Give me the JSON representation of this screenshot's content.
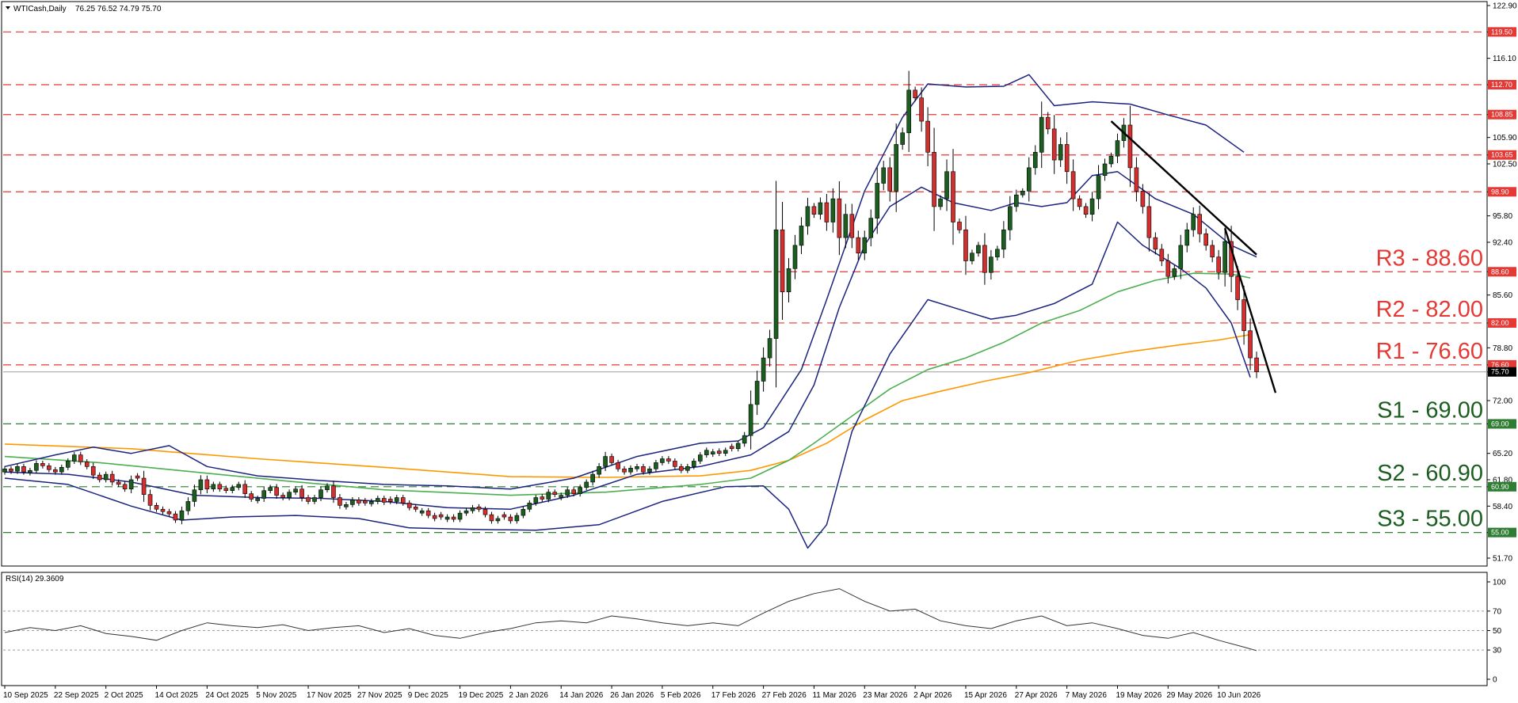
{
  "chart_data": {
    "type": "candlestick",
    "symbol": "WTICash,Daily",
    "ohlc_header": "76.25 76.52 74.79 75.70",
    "last_price": "75.70",
    "y_ticks": [
      "122.90",
      "119.50",
      "116.10",
      "112.70",
      "108.85",
      "105.90",
      "103.65",
      "102.50",
      "98.90",
      "95.80",
      "92.40",
      "88.60",
      "85.60",
      "82.00",
      "78.80",
      "76.60",
      "75.70",
      "72.00",
      "69.00",
      "65.20",
      "61.80",
      "60.90",
      "58.40",
      "55.00",
      "51.70"
    ],
    "x_labels": [
      {
        "label": "10 Sep 2025",
        "i": 0
      },
      {
        "label": "22 Sep 2025",
        "i": 8
      },
      {
        "label": "2 Oct 2025",
        "i": 16
      },
      {
        "label": "14 Oct 2025",
        "i": 24
      },
      {
        "label": "24 Oct 2025",
        "i": 32
      },
      {
        "label": "5 Nov 2025",
        "i": 40
      },
      {
        "label": "17 Nov 2025",
        "i": 48
      },
      {
        "label": "27 Nov 2025",
        "i": 56
      },
      {
        "label": "9 Dec 2025",
        "i": 64
      },
      {
        "label": "19 Dec 2025",
        "i": 72
      },
      {
        "label": "2 Jan 2026",
        "i": 80
      },
      {
        "label": "14 Jan 2026",
        "i": 88
      },
      {
        "label": "26 Jan 2026",
        "i": 96
      },
      {
        "label": "5 Feb 2026",
        "i": 104
      },
      {
        "label": "17 Feb 2026",
        "i": 112
      },
      {
        "label": "27 Feb 2026",
        "i": 120
      },
      {
        "label": "11 Mar 2026",
        "i": 128
      },
      {
        "label": "23 Mar 2026",
        "i": 136
      },
      {
        "label": "2 Apr 2026",
        "i": 144
      },
      {
        "label": "15 Apr 2026",
        "i": 152
      },
      {
        "label": "27 Apr 2026",
        "i": 160
      },
      {
        "label": "7 May 2026",
        "i": 168
      },
      {
        "label": "19 May 2026",
        "i": 176
      },
      {
        "label": "29 May 2026",
        "i": 184
      },
      {
        "label": "10 Jun 2026",
        "i": 192
      }
    ],
    "price_range": [
      51.7,
      122.9
    ],
    "levels": [
      {
        "value": 119.5,
        "tag": "119.50",
        "kind": "resistance",
        "label": ""
      },
      {
        "value": 112.7,
        "tag": "112.70",
        "kind": "resistance",
        "label": ""
      },
      {
        "value": 108.85,
        "tag": "108.85",
        "kind": "resistance",
        "label": ""
      },
      {
        "value": 103.65,
        "tag": "103.65",
        "kind": "resistance",
        "label": ""
      },
      {
        "value": 98.9,
        "tag": "98.90",
        "kind": "resistance",
        "label": ""
      },
      {
        "value": 88.6,
        "tag": "88.60",
        "kind": "resistance",
        "label": "R3 - 88.60"
      },
      {
        "value": 82.0,
        "tag": "82.00",
        "kind": "resistance",
        "label": "R2 - 82.00"
      },
      {
        "value": 76.6,
        "tag": "76.60",
        "kind": "resistance",
        "label": "R1 - 76.60"
      },
      {
        "value": 69.0,
        "tag": "69.00",
        "kind": "support",
        "label": "S1 - 69.00"
      },
      {
        "value": 60.9,
        "tag": "60.90",
        "kind": "support",
        "label": "S2 - 60.90"
      },
      {
        "value": 55.0,
        "tag": "55.00",
        "kind": "support",
        "label": "S3 - 55.00"
      }
    ],
    "closes": [
      63.2,
      62.9,
      63.5,
      62.8,
      63.0,
      63.9,
      63.6,
      63.1,
      62.8,
      63.4,
      64.2,
      65.0,
      64.1,
      63.5,
      62.4,
      61.8,
      62.5,
      61.5,
      61.2,
      60.6,
      61.8,
      62.0,
      59.9,
      58.5,
      58.0,
      57.7,
      57.4,
      56.6,
      57.8,
      59.0,
      60.5,
      61.8,
      60.6,
      61.2,
      60.6,
      60.4,
      60.8,
      61.2,
      60.0,
      59.3,
      59.4,
      60.4,
      60.8,
      59.8,
      59.5,
      60.2,
      60.6,
      59.5,
      59.0,
      59.5,
      60.5,
      61.0,
      59.5,
      58.5,
      58.6,
      59.2,
      58.8,
      58.8,
      59.0,
      59.4,
      58.9,
      59.0,
      59.5,
      58.8,
      58.2,
      58.0,
      57.8,
      57.2,
      56.8,
      57.0,
      57.0,
      56.7,
      57.5,
      57.8,
      58.2,
      58.0,
      57.3,
      56.5,
      56.8,
      57.0,
      56.5,
      57.2,
      58.0,
      58.8,
      59.5,
      59.3,
      60.2,
      59.9,
      59.8,
      60.5,
      60.0,
      60.8,
      61.5,
      62.5,
      63.5,
      64.8,
      64.0,
      63.2,
      62.8,
      63.3,
      63.5,
      62.8,
      63.2,
      64.0,
      64.5,
      64.2,
      63.5,
      63.0,
      63.5,
      64.2,
      65.0,
      65.6,
      65.4,
      65.2,
      65.6,
      65.8,
      66.5,
      67.5,
      71.5,
      74.5,
      77.5,
      80.0,
      94.0,
      86.0,
      89.0,
      92.0,
      94.5,
      97.0,
      96.0,
      97.5,
      95.0,
      98.0,
      93.0,
      96.0,
      93.0,
      91.0,
      93.0,
      95.5,
      100.0,
      102.0,
      99.0,
      105.0,
      106.5,
      112.0,
      111.0,
      108.0,
      104.0,
      97.0,
      98.0,
      101.5,
      95.0,
      94.0,
      90.0,
      91.0,
      92.0,
      88.5,
      90.5,
      91.5,
      94.0,
      97.0,
      98.5,
      99.0,
      102.0,
      104.0,
      108.5,
      107.0,
      103.0,
      105.0,
      101.5,
      98.0,
      97.0,
      96.0,
      98.0,
      101.0,
      102.5,
      103.5,
      105.5,
      107.5,
      102.0,
      99.0,
      97.0,
      93.0,
      91.5,
      90.0,
      88.0,
      89.0,
      92.0,
      94.0,
      96.0,
      93.5,
      92.0,
      90.5,
      88.5,
      92.5,
      88.0,
      85.0,
      81.0,
      77.5,
      75.7
    ],
    "ma_orange": [
      [
        0,
        66.4
      ],
      [
        20,
        65.8
      ],
      [
        40,
        64.5
      ],
      [
        60,
        63.4
      ],
      [
        80,
        62.2
      ],
      [
        95,
        62.1
      ],
      [
        110,
        62.3
      ],
      [
        118,
        63.0
      ],
      [
        124,
        64.3
      ],
      [
        130,
        66.5
      ],
      [
        136,
        69.5
      ],
      [
        142,
        72.0
      ],
      [
        148,
        73.2
      ],
      [
        155,
        74.5
      ],
      [
        162,
        75.6
      ],
      [
        170,
        77.2
      ],
      [
        178,
        78.3
      ],
      [
        186,
        79.2
      ],
      [
        192,
        79.8
      ],
      [
        197,
        80.5
      ]
    ],
    "ma_green": [
      [
        0,
        64.8
      ],
      [
        15,
        64.0
      ],
      [
        30,
        62.8
      ],
      [
        45,
        61.6
      ],
      [
        60,
        60.5
      ],
      [
        80,
        59.8
      ],
      [
        95,
        60.2
      ],
      [
        110,
        61.2
      ],
      [
        118,
        62.0
      ],
      [
        124,
        64.3
      ],
      [
        128,
        66.5
      ],
      [
        134,
        70.0
      ],
      [
        140,
        73.5
      ],
      [
        146,
        76.0
      ],
      [
        152,
        77.5
      ],
      [
        158,
        79.5
      ],
      [
        164,
        82.0
      ],
      [
        170,
        83.6
      ],
      [
        176,
        86.0
      ],
      [
        182,
        87.5
      ],
      [
        188,
        88.4
      ],
      [
        194,
        88.3
      ],
      [
        197,
        87.8
      ]
    ],
    "bb_upper": [
      [
        0,
        63.5
      ],
      [
        8,
        65.0
      ],
      [
        14,
        66.0
      ],
      [
        20,
        65.2
      ],
      [
        26,
        66.2
      ],
      [
        32,
        63.5
      ],
      [
        40,
        62.3
      ],
      [
        50,
        61.7
      ],
      [
        60,
        61.2
      ],
      [
        70,
        61.0
      ],
      [
        80,
        60.6
      ],
      [
        90,
        62.0
      ],
      [
        100,
        64.8
      ],
      [
        110,
        66.5
      ],
      [
        116,
        66.8
      ],
      [
        120,
        68.5
      ],
      [
        126,
        76.0
      ],
      [
        130,
        85.0
      ],
      [
        136,
        99.0
      ],
      [
        142,
        108.5
      ],
      [
        146,
        112.8
      ],
      [
        152,
        112.4
      ],
      [
        158,
        112.5
      ],
      [
        162,
        114.0
      ],
      [
        166,
        110.0
      ],
      [
        172,
        110.5
      ],
      [
        178,
        110.2
      ],
      [
        184,
        108.8
      ],
      [
        190,
        107.5
      ],
      [
        196,
        104.0
      ]
    ],
    "bb_middle": [
      [
        0,
        62.8
      ],
      [
        10,
        62.5
      ],
      [
        20,
        61.5
      ],
      [
        30,
        59.8
      ],
      [
        40,
        59.5
      ],
      [
        50,
        59.4
      ],
      [
        60,
        59.0
      ],
      [
        70,
        58.2
      ],
      [
        80,
        58.0
      ],
      [
        90,
        59.8
      ],
      [
        100,
        62.5
      ],
      [
        110,
        63.5
      ],
      [
        118,
        65.0
      ],
      [
        124,
        68.0
      ],
      [
        128,
        74.0
      ],
      [
        132,
        84.0
      ],
      [
        136,
        92.0
      ],
      [
        140,
        97.0
      ],
      [
        145,
        99.5
      ],
      [
        150,
        97.5
      ],
      [
        156,
        96.5
      ],
      [
        160,
        97.5
      ],
      [
        164,
        97.0
      ],
      [
        168,
        97.5
      ],
      [
        172,
        101.0
      ],
      [
        176,
        101.5
      ],
      [
        182,
        98.0
      ],
      [
        188,
        96.0
      ],
      [
        194,
        92.0
      ],
      [
        198,
        90.5
      ]
    ],
    "bb_lower": [
      [
        0,
        62.0
      ],
      [
        10,
        61.2
      ],
      [
        20,
        58.4
      ],
      [
        28,
        56.6
      ],
      [
        36,
        57.0
      ],
      [
        46,
        57.2
      ],
      [
        56,
        56.8
      ],
      [
        64,
        55.6
      ],
      [
        74,
        55.4
      ],
      [
        84,
        55.3
      ],
      [
        94,
        56.0
      ],
      [
        104,
        59.0
      ],
      [
        114,
        60.9
      ],
      [
        120,
        61.0
      ],
      [
        124,
        58.0
      ],
      [
        127,
        53.0
      ],
      [
        130,
        56.0
      ],
      [
        134,
        68.0
      ],
      [
        140,
        78.0
      ],
      [
        146,
        85.0
      ],
      [
        152,
        83.5
      ],
      [
        156,
        82.5
      ],
      [
        160,
        83.0
      ],
      [
        166,
        84.5
      ],
      [
        172,
        87.0
      ],
      [
        176,
        95.0
      ],
      [
        180,
        92.0
      ],
      [
        186,
        89.0
      ],
      [
        190,
        86.5
      ],
      [
        194,
        82.0
      ],
      [
        197,
        75.0
      ]
    ],
    "trendlines": [
      {
        "from": [
          175,
          108.0
        ],
        "to": [
          198,
          90.8
        ]
      },
      {
        "from": [
          193,
          94.2
        ],
        "to": [
          201,
          73.0
        ]
      }
    ],
    "rsi": {
      "label": "RSI(14) 29.3609",
      "range": [
        0,
        100
      ],
      "levels": [
        70,
        50,
        30
      ],
      "ticks": [
        "100",
        "70",
        "50",
        "30",
        "0"
      ],
      "values": [
        [
          0,
          48
        ],
        [
          4,
          53
        ],
        [
          8,
          50
        ],
        [
          12,
          55
        ],
        [
          16,
          47
        ],
        [
          20,
          44
        ],
        [
          24,
          40
        ],
        [
          28,
          50
        ],
        [
          32,
          58
        ],
        [
          36,
          55
        ],
        [
          40,
          53
        ],
        [
          44,
          56
        ],
        [
          48,
          50
        ],
        [
          52,
          53
        ],
        [
          56,
          55
        ],
        [
          60,
          48
        ],
        [
          64,
          52
        ],
        [
          68,
          45
        ],
        [
          72,
          42
        ],
        [
          76,
          48
        ],
        [
          80,
          52
        ],
        [
          84,
          58
        ],
        [
          88,
          60
        ],
        [
          92,
          58
        ],
        [
          96,
          65
        ],
        [
          100,
          62
        ],
        [
          104,
          58
        ],
        [
          108,
          55
        ],
        [
          112,
          58
        ],
        [
          116,
          55
        ],
        [
          120,
          68
        ],
        [
          124,
          80
        ],
        [
          128,
          88
        ],
        [
          132,
          93
        ],
        [
          136,
          80
        ],
        [
          140,
          70
        ],
        [
          144,
          72
        ],
        [
          148,
          60
        ],
        [
          152,
          55
        ],
        [
          156,
          52
        ],
        [
          160,
          60
        ],
        [
          164,
          65
        ],
        [
          168,
          55
        ],
        [
          172,
          58
        ],
        [
          176,
          52
        ],
        [
          180,
          45
        ],
        [
          184,
          42
        ],
        [
          188,
          48
        ],
        [
          192,
          40
        ],
        [
          196,
          33
        ],
        [
          198,
          29.4
        ]
      ]
    }
  }
}
